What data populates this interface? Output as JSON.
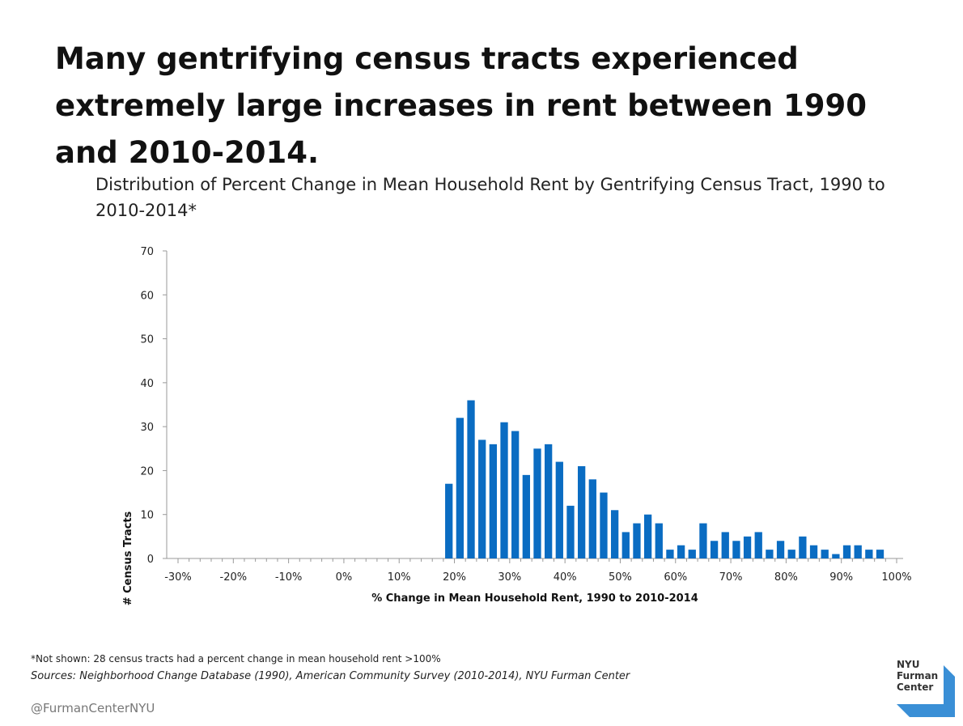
{
  "headline": "Many gentrifying census tracts experienced extremely large increases in rent between 1990 and 2010-2014.",
  "footnote": "*Not shown: 28 census tracts had a percent change in mean household rent >100%",
  "sources": "Sources: Neighborhood Change Database (1990), American Community Survey (2010-2014), NYU Furman Center",
  "handle": "@FurmanCenterNYU",
  "logo": {
    "lines": [
      "NYU",
      "Furman",
      "Center"
    ],
    "color": "#3a8fd6"
  },
  "colors": {
    "bar": "#0a6cc2",
    "axis": "#999999"
  },
  "chart_data": {
    "type": "bar",
    "title": "Distribution of Percent Change in Mean Household Rent by Gentrifying Census Tract, 1990 to 2010-2014*",
    "xlabel": "% Change in Mean Household Rent, 1990 to 2010-2014",
    "ylabel": "# Census Tracts",
    "ylim": [
      0,
      70
    ],
    "yticks": [
      "0",
      "10",
      "20",
      "30",
      "40",
      "50",
      "60",
      "70"
    ],
    "xlim": [
      -30,
      100
    ],
    "xticks": [
      "-30%",
      "-20%",
      "-10%",
      "0%",
      "10%",
      "20%",
      "30%",
      "40%",
      "50%",
      "60%",
      "70%",
      "80%",
      "90%",
      "100%"
    ],
    "bin_width": 2,
    "bin_starts": [
      18,
      20,
      22,
      24,
      26,
      28,
      30,
      32,
      34,
      36,
      38,
      40,
      42,
      44,
      46,
      48,
      50,
      52,
      54,
      56,
      58,
      60,
      62,
      64,
      66,
      68,
      70,
      72,
      74,
      76,
      78,
      80,
      82,
      84,
      86,
      88,
      90,
      92,
      94,
      96
    ],
    "values": [
      17,
      32,
      36,
      27,
      26,
      31,
      29,
      19,
      25,
      26,
      22,
      12,
      21,
      18,
      15,
      11,
      6,
      8,
      10,
      8,
      2,
      3,
      2,
      8,
      4,
      6,
      4,
      5,
      6,
      2,
      4,
      2,
      5,
      3,
      2,
      1,
      3,
      3,
      2,
      2
    ]
  }
}
